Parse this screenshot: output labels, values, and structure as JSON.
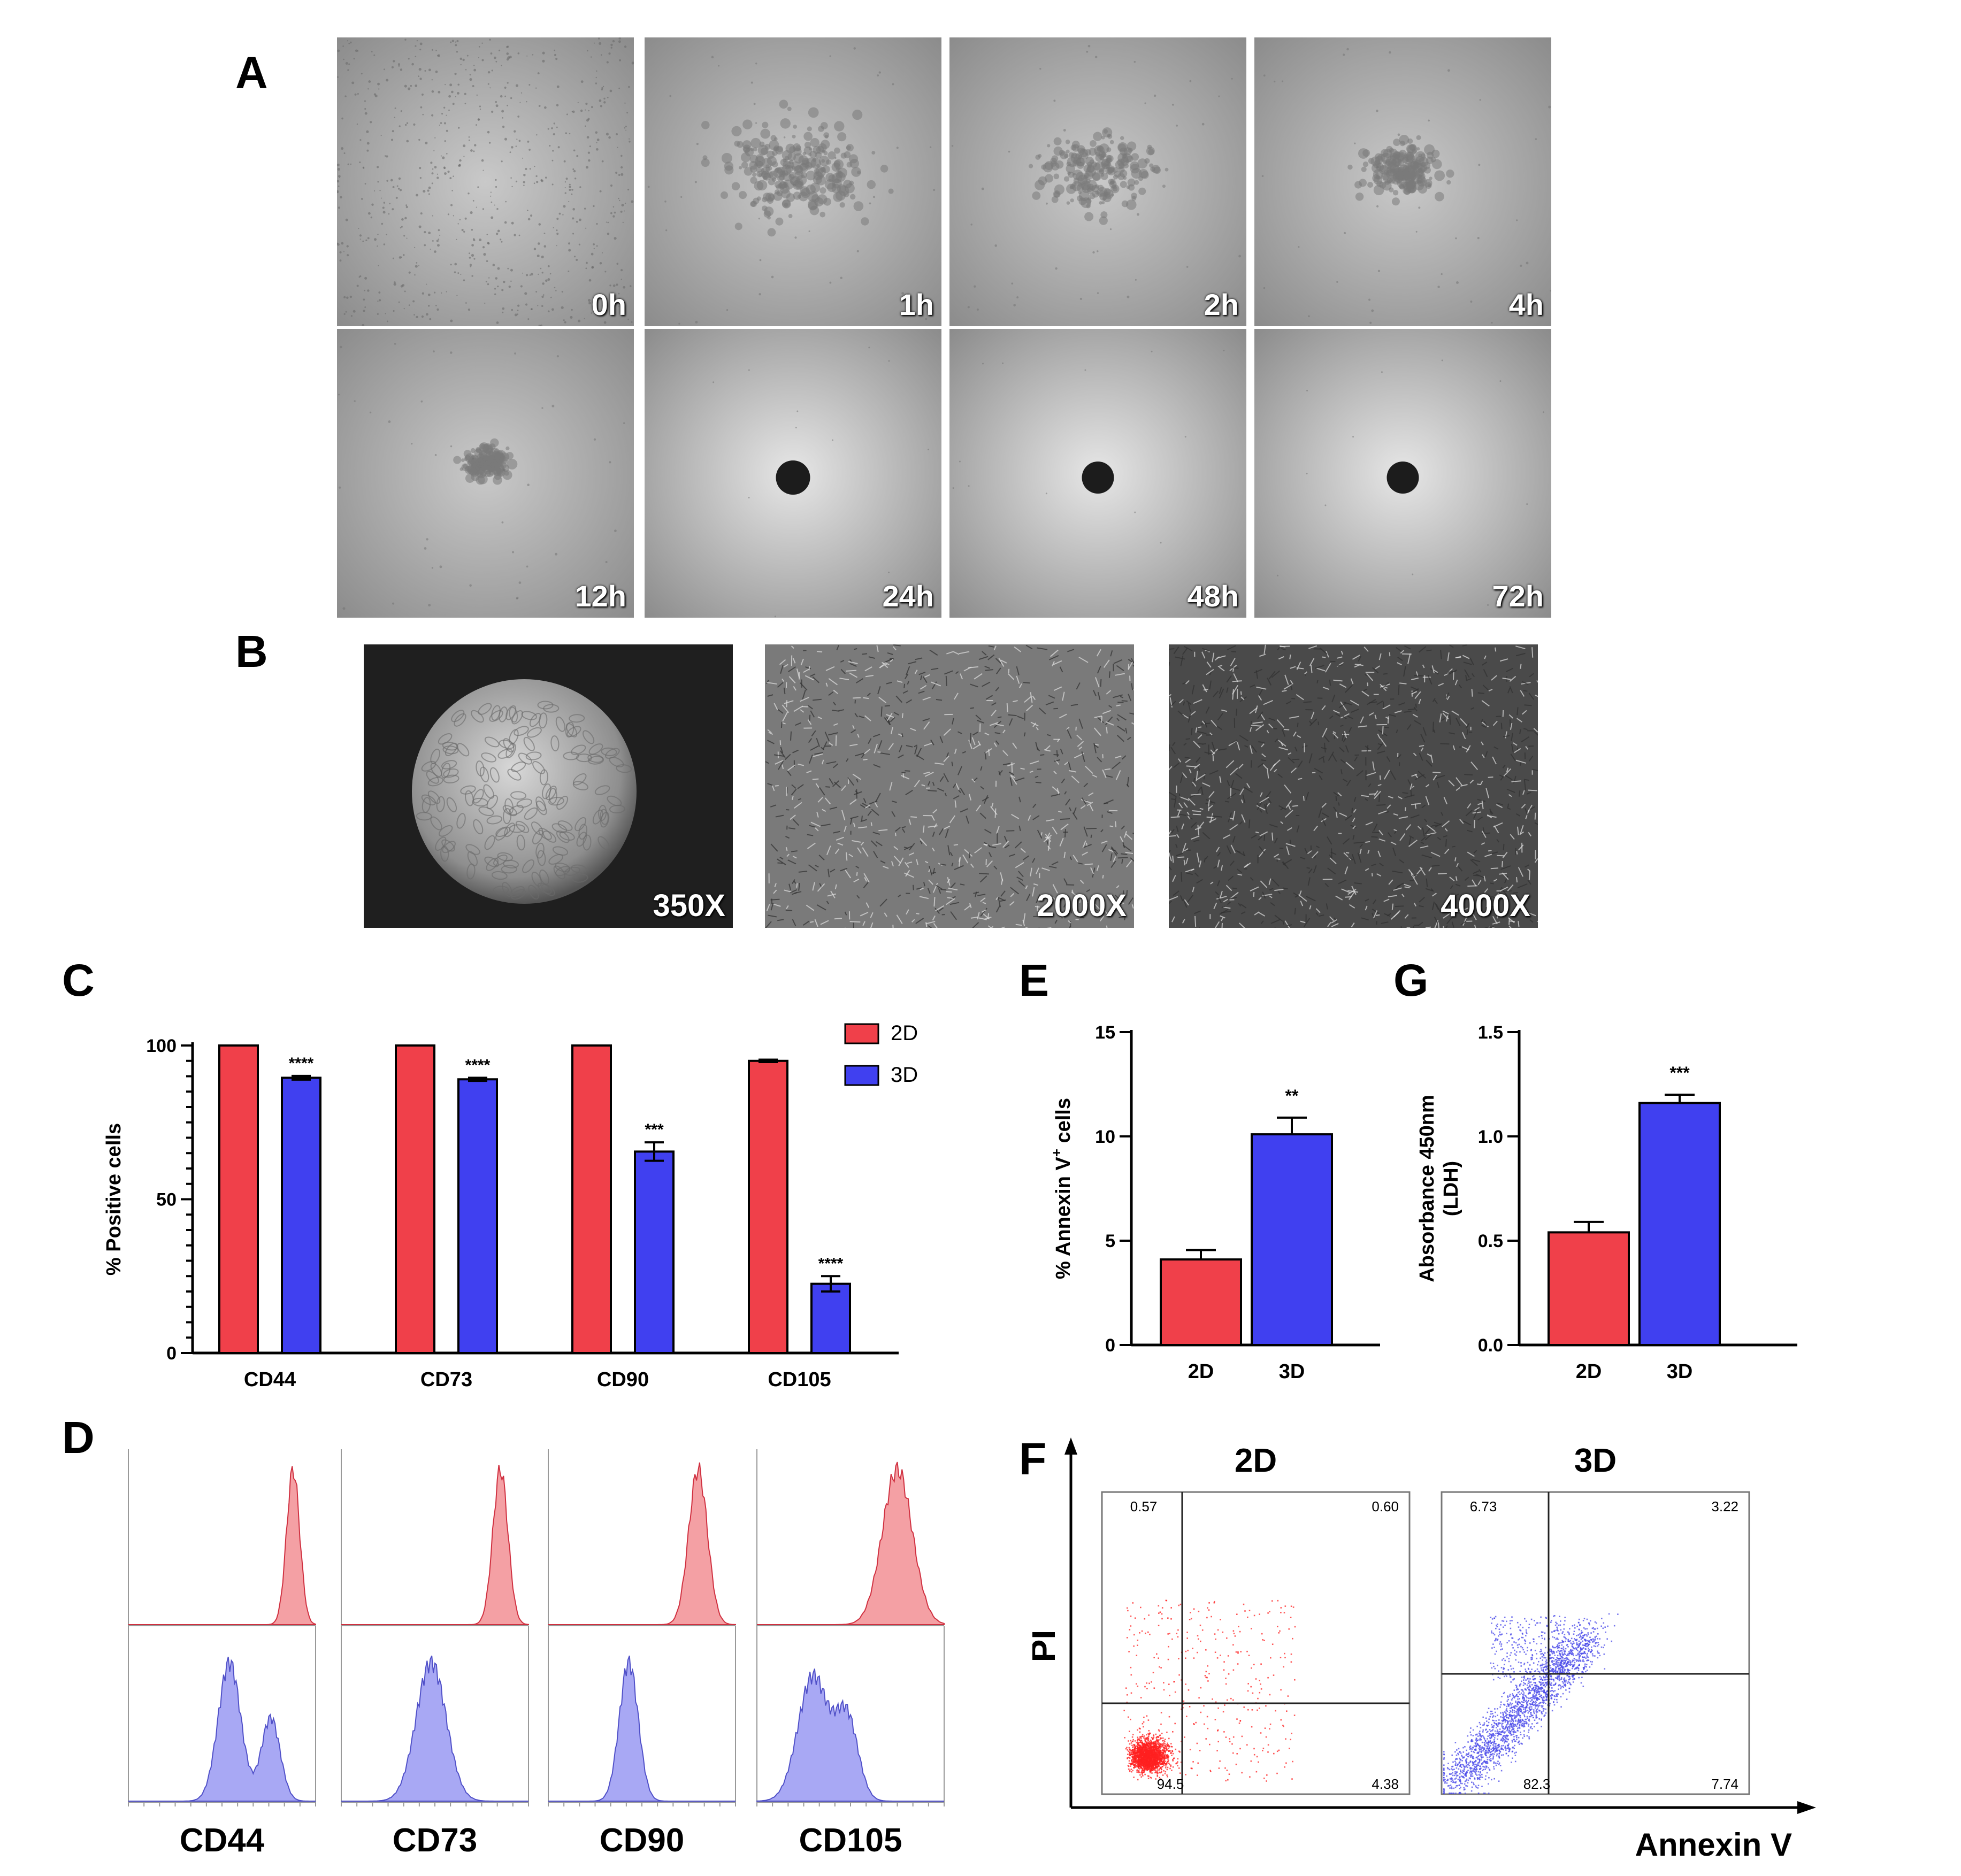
{
  "panels": {
    "A": "A",
    "B": "B",
    "C": "C",
    "D": "D",
    "E": "E",
    "F": "F",
    "G": "G"
  },
  "timelapse": {
    "labels": [
      "0h",
      "1h",
      "2h",
      "4h",
      "12h",
      "24h",
      "48h",
      "72h"
    ],
    "stages": [
      "dispersed",
      "clusters-large",
      "clusters-medium",
      "clusters-small",
      "aggregate",
      "spheroid",
      "spheroid",
      "spheroid"
    ]
  },
  "sem": {
    "labels": [
      "350X",
      "2000X",
      "4000X"
    ]
  },
  "chart_data": [
    {
      "id": "C",
      "type": "bar",
      "categories": [
        "CD44",
        "CD73",
        "CD90",
        "CD105"
      ],
      "series": [
        {
          "name": "2D",
          "color": "#f0404a",
          "values": [
            100,
            100,
            100,
            95
          ],
          "errors": [
            0,
            0,
            0,
            0.4
          ]
        },
        {
          "name": "3D",
          "color": "#4040f0",
          "values": [
            89.5,
            89,
            65.5,
            22.5
          ],
          "errors": [
            0.6,
            0.5,
            3,
            2.5
          ]
        }
      ],
      "significance": [
        "****",
        "****",
        "***",
        "****"
      ],
      "ylabel": "% Positive cells",
      "ylim": [
        0,
        100
      ],
      "yticks": [
        0,
        50,
        100
      ],
      "legend": "top-right"
    },
    {
      "id": "E",
      "type": "bar",
      "categories": [
        "2D",
        "3D"
      ],
      "colors": [
        "#f0404a",
        "#4040f0"
      ],
      "values": [
        4.1,
        10.1
      ],
      "errors": [
        0.45,
        0.8
      ],
      "significance": [
        "",
        "**"
      ],
      "ylabel_main": "% Annexin V",
      "ylabel_sup": "+",
      "ylabel_tail": " cells",
      "ylim": [
        0,
        15
      ],
      "yticks": [
        0,
        5,
        10,
        15
      ]
    },
    {
      "id": "G",
      "type": "bar",
      "categories": [
        "2D",
        "3D"
      ],
      "colors": [
        "#f0404a",
        "#4040f0"
      ],
      "values": [
        0.54,
        1.16
      ],
      "errors": [
        0.05,
        0.04
      ],
      "significance": [
        "",
        "***"
      ],
      "ylabel_line1": "Absorbance 450nm",
      "ylabel_line2": "(LDH)",
      "ylim": [
        0,
        1.5
      ],
      "yticks": [
        "0.0",
        "0.5",
        "1.0",
        "1.5"
      ]
    },
    {
      "id": "D",
      "type": "histogram",
      "markers": [
        "CD44",
        "CD73",
        "CD90",
        "CD105"
      ],
      "rows": [
        "2D",
        "3D"
      ],
      "colors": {
        "2D": "#f4a0a4",
        "3D": "#a8a8f4"
      }
    },
    {
      "id": "F",
      "type": "scatter",
      "xlabel": "Annexin V",
      "ylabel": "PI",
      "plots": [
        {
          "title": "2D",
          "color": "#ff2020",
          "quadrants": {
            "UL": "0.57",
            "UR": "0.60",
            "LL": "94.5",
            "LR": "4.38"
          }
        },
        {
          "title": "3D",
          "color": "#4848e8",
          "quadrants": {
            "UL": "6.73",
            "UR": "3.22",
            "LL": "82.3",
            "LR": "7.74"
          }
        }
      ]
    }
  ]
}
